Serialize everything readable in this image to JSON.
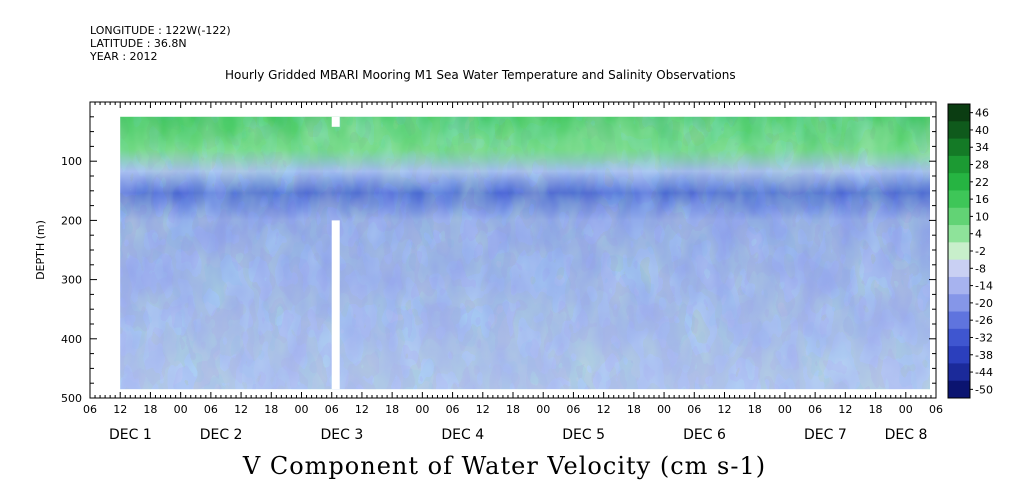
{
  "header": {
    "longitude": "LONGITUDE : 122W(-122)",
    "latitude": "LATITUDE : 36.8N",
    "year": "YEAR : 2012"
  },
  "chart_data": {
    "type": "heatmap",
    "title": "Hourly Gridded MBARI Mooring M1 Sea Water Temperature and Salinity Observations",
    "subtitle": "V Component of Water Velocity (cm s-1)",
    "ylabel": "DEPTH (m)",
    "xlabel": "",
    "ylim": [
      500,
      0
    ],
    "y_ticks": [
      100,
      200,
      300,
      400,
      500
    ],
    "x_range_hours": [
      "DEC 1 06",
      "DEC 8 06"
    ],
    "x_hour_labels": [
      "06",
      "12",
      "18",
      "00",
      "06",
      "12",
      "18",
      "00",
      "06",
      "12",
      "18",
      "00",
      "06",
      "12",
      "18",
      "00",
      "06",
      "12",
      "18",
      "00",
      "06",
      "12",
      "18",
      "00",
      "06",
      "12",
      "18",
      "00",
      "06"
    ],
    "x_day_labels": [
      "DEC 1",
      "DEC 2",
      "DEC 3",
      "DEC 4",
      "DEC 5",
      "DEC 6",
      "DEC 7",
      "DEC 8"
    ],
    "colorbar": {
      "labels": [
        "46",
        "40",
        "34",
        "28",
        "22",
        "16",
        "10",
        "4",
        "-2",
        "-8",
        "-14",
        "-20",
        "-26",
        "-32",
        "-38",
        "-44",
        "-50"
      ],
      "colors": [
        "#0b3d12",
        "#0f5a1c",
        "#147a26",
        "#1c9a33",
        "#26b442",
        "#3ec658",
        "#62d375",
        "#8ee39a",
        "#c8efcb",
        "#c9d0f3",
        "#a7b3ef",
        "#8596e8",
        "#5f74de",
        "#3f56d0",
        "#2b3fbd",
        "#1b2a9a",
        "#0b1470"
      ]
    },
    "grid": false,
    "legend": "right colorbar"
  }
}
